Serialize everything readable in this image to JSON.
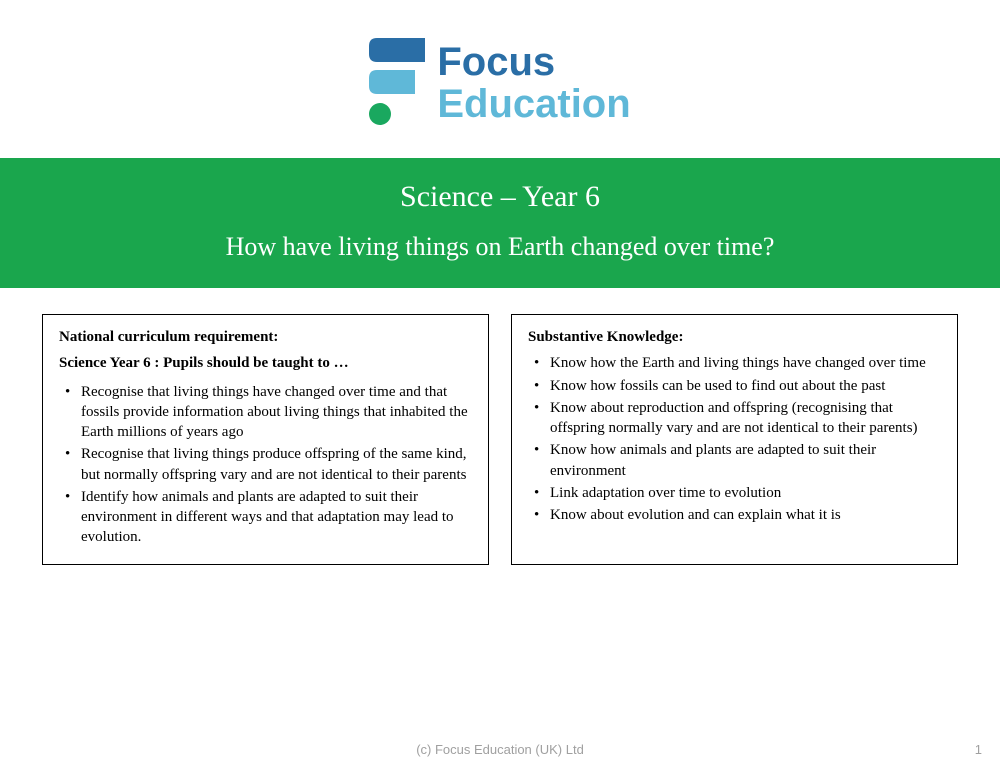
{
  "logo": {
    "word_top": "Focus",
    "word_bottom": "Education",
    "color_top": "#2a6ea6",
    "color_bottom": "#5fb8d8",
    "mark_color_top": "#2a6ea6",
    "mark_color_mid": "#5fb8d8",
    "mark_color_dot": "#1aa85f"
  },
  "banner": {
    "title": "Science – Year 6",
    "subtitle": "How have living things on Earth changed over time?",
    "background": "#1aa64d",
    "text_color": "#ffffff"
  },
  "left_box": {
    "heading": "National curriculum requirement:",
    "subheading": "Science Year 6 : Pupils should be taught to …",
    "items": [
      "Recognise that living things have changed over time and that fossils provide information about living things that inhabited the Earth millions of years ago",
      "Recognise that living things produce offspring of the same kind, but normally offspring vary and are not identical to their parents",
      "Identify how animals and plants are adapted to suit their environment in different ways and that adaptation may lead to evolution."
    ]
  },
  "right_box": {
    "heading": "Substantive Knowledge:",
    "items": [
      "Know how the Earth and living things have changed over time",
      "Know how fossils can be used to find out about the past",
      "Know about reproduction and offspring (recognising that offspring normally vary and are not identical to their parents)",
      "Know how animals and plants are adapted to suit their environment",
      "Link adaptation over time to evolution",
      "Know about evolution and can explain what it is"
    ]
  },
  "footer": {
    "copyright": "(c) Focus Education (UK) Ltd",
    "page": "1"
  },
  "colors": {
    "page_bg": "#ffffff",
    "box_border": "#000000",
    "footer_text": "#a0a0a0"
  }
}
